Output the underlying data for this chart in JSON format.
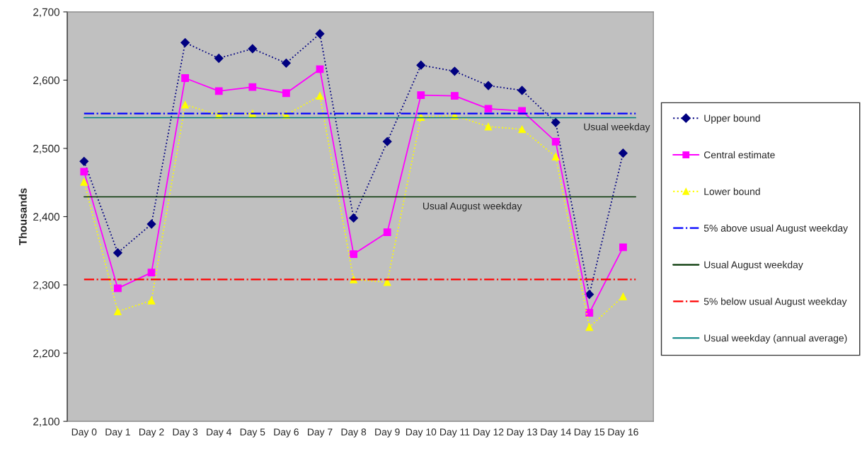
{
  "chart_data": {
    "type": "line",
    "ylabel": "Thousands",
    "categories": [
      "Day 0",
      "Day 1",
      "Day 2",
      "Day 3",
      "Day 4",
      "Day 5",
      "Day 6",
      "Day 7",
      "Day 8",
      "Day 9",
      "Day 10",
      "Day 11",
      "Day 12",
      "Day 13",
      "Day 14",
      "Day 15",
      "Day 16"
    ],
    "series": [
      {
        "name": "Upper bound",
        "color": "#000080",
        "marker": "diamond",
        "line_style": "dotted",
        "values": [
          2481,
          2347,
          2389,
          2655,
          2632,
          2646,
          2625,
          2668,
          2398,
          2510,
          2622,
          2613,
          2592,
          2585,
          2538,
          2286,
          2493
        ]
      },
      {
        "name": "Central estimate",
        "color": "#ff00ff",
        "marker": "square",
        "line_style": "solid",
        "values": [
          2466,
          2295,
          2318,
          2603,
          2584,
          2590,
          2581,
          2616,
          2345,
          2377,
          2578,
          2577,
          2558,
          2555,
          2510,
          2259,
          2355
        ]
      },
      {
        "name": "Lower bound",
        "color": "#ffff00",
        "marker": "triangle",
        "line_style": "dotted",
        "values": [
          2451,
          2261,
          2277,
          2564,
          2549,
          2551,
          2549,
          2577,
          2308,
          2304,
          2546,
          2548,
          2532,
          2528,
          2488,
          2238,
          2283
        ]
      }
    ],
    "ref_lines": [
      {
        "axis": "y",
        "value": 2551,
        "label": "5% above usual August weekday",
        "color": "#0000ff",
        "line_style": "dashdot"
      },
      {
        "axis": "y",
        "value": 2429,
        "label": "Usual August weekday",
        "color": "#003300",
        "line_style": "solid"
      },
      {
        "axis": "y",
        "value": 2308,
        "label": "5% below usual August weekday",
        "color": "#ff0000",
        "line_style": "dashdot"
      },
      {
        "axis": "y",
        "value": 2545,
        "label": "Usual weekday (annual average)",
        "color": "#008080",
        "line_style": "solid"
      }
    ],
    "annotations": [
      {
        "text": "Usual weekday",
        "y": 2545
      },
      {
        "text": "Usual August weekday",
        "y": 2429
      }
    ],
    "ylim": [
      2100,
      2700
    ],
    "yticks": [
      {
        "value": 2100,
        "label": "2,100"
      },
      {
        "value": 2200,
        "label": "2,200"
      },
      {
        "value": 2300,
        "label": "2,300"
      },
      {
        "value": 2400,
        "label": "2,400"
      },
      {
        "value": 2500,
        "label": "2,500"
      },
      {
        "value": 2600,
        "label": "2,600"
      },
      {
        "value": 2700,
        "label": "2,700"
      }
    ],
    "grid": false,
    "legend": "right"
  }
}
